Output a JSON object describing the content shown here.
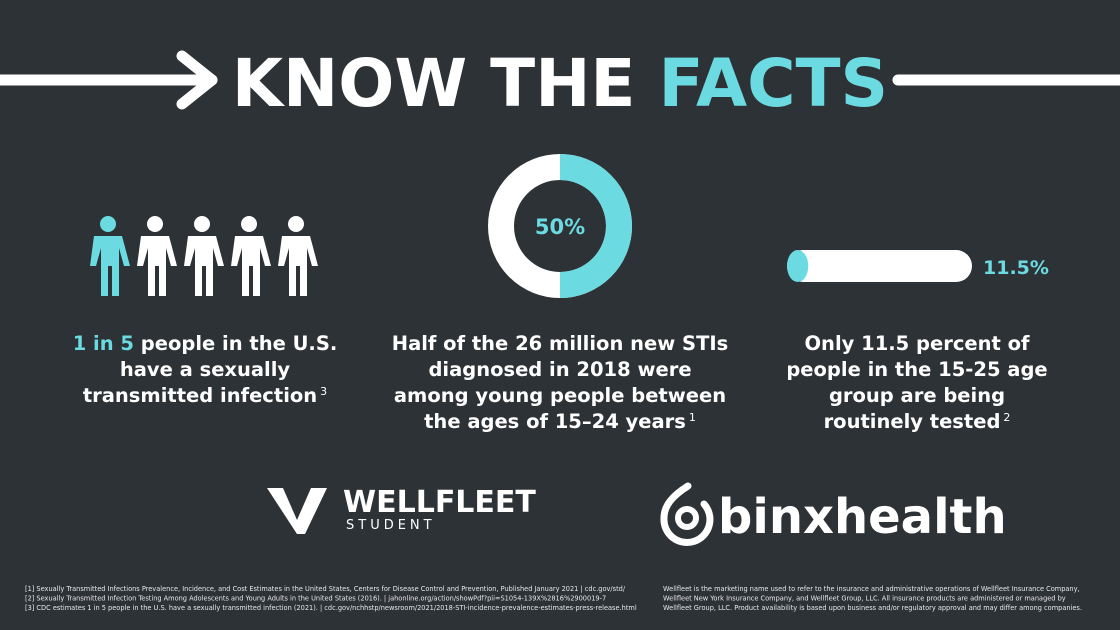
{
  "title": {
    "part1": "KNOW THE",
    "part2": "FACTS"
  },
  "facts": [
    {
      "highlight": "1 in 5",
      "text_lines": [
        "people in the U.S.",
        "have a sexually",
        "transmitted infection"
      ],
      "footnote": "3"
    },
    {
      "donut": {
        "value": 50,
        "label": "50%"
      },
      "text_lines": [
        "Half of the 26 million new STIs",
        "diagnosed in 2018 were",
        "among young people between",
        "the ages of 15–24 years"
      ],
      "footnote": "1"
    },
    {
      "bar": {
        "value": 11.5,
        "label": "11.5%"
      },
      "text_lines": [
        "Only 11.5 percent of",
        "people in the 15-25 age",
        "group are being",
        "routinely tested"
      ],
      "footnote": "2"
    }
  ],
  "logos": {
    "wellfleet": "WELLFLEET",
    "wellfleet_sub": "STUDENT",
    "binx": "binxhealth"
  },
  "footnotes": {
    "left": [
      "[1] Sexually Transmitted Infections Prevalence, Incidence, and Cost Estimates in the United States, Centers for Disease Control and Prevention, Published January 2021 | cdc.gov/std/",
      "[2] Sexually Transmitted Infection Testing Among Adolescents and Young Adults in the United States (2016). | jahonline.org/action/showPdf?pii=S1054-139X%2816%2900019-7",
      "[3] CDC estimates 1 in 5 people in the U.S. have a sexually transmitted infection (2021). | cdc.gov/nchhstp/newsroom/2021/2018-STI-incidence-prevalence-estimates-press-release.html"
    ],
    "right": [
      "Wellfleet is the marketing name used to refer to the insurance and administrative operations of Wellfleet Insurance Company,",
      "Wellfleet New York Insurance Company, and Wellfleet Group, LLC. All insurance products are administered or managed by",
      "Wellfleet Group, LLC. Product availability is based upon business and/or regulatory approval and may differ among companies."
    ]
  }
}
